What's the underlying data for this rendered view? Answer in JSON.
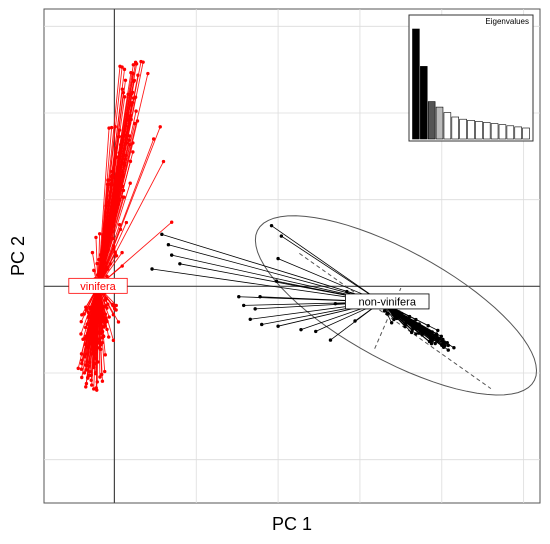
{
  "chart_data": {
    "type": "scatter",
    "subtype": "PCA group scatter (DAPC-style) with star lines to group centroids",
    "xlabel": "PC 1",
    "ylabel": "PC 2",
    "xlim": [
      -4.3,
      26
    ],
    "ylim": [
      -12.5,
      16
    ],
    "grid": true,
    "axes_lines_at_zero": true,
    "groups": [
      {
        "name": "vinifera",
        "color": "#ff0000",
        "centroid": [
          -1.0,
          0.0
        ],
        "point_count_estimate": 300,
        "x_range": [
          -2.5,
          3.0
        ],
        "y_range": [
          -6.0,
          13.0
        ],
        "outliers": [
          [
            2.8,
            9.2
          ],
          [
            3.0,
            7.2
          ],
          [
            3.5,
            3.7
          ],
          [
            2.4,
            8.5
          ]
        ]
      },
      {
        "name": "non-vinifera",
        "color": "#000000",
        "centroid": [
          16.3,
          -0.9
        ],
        "ellipse": {
          "center": [
            17.2,
            -1.1
          ],
          "semi_major": 9.5,
          "semi_minor": 3.2,
          "angle_deg": -27
        },
        "axis_line": {
          "from": [
            11.3,
            1.9
          ],
          "to": [
            23.0,
            -5.9
          ]
        },
        "minor_axis_line": {
          "from": [
            15.9,
            -3.6
          ],
          "to": [
            17.5,
            -0.1
          ]
        },
        "points": [
          [
            2.9,
            3.0
          ],
          [
            3.3,
            2.4
          ],
          [
            3.5,
            1.8
          ],
          [
            2.3,
            1.0
          ],
          [
            4.0,
            1.3
          ],
          [
            9.6,
            3.5
          ],
          [
            10.2,
            2.9
          ],
          [
            10.0,
            1.6
          ],
          [
            9.9,
            0.3
          ],
          [
            8.6,
            -1.3
          ],
          [
            8.3,
            -1.9
          ],
          [
            9.0,
            -2.2
          ],
          [
            10.0,
            -2.3
          ],
          [
            11.4,
            -2.5
          ],
          [
            7.6,
            -0.6
          ],
          [
            7.9,
            -1.1
          ],
          [
            8.9,
            -0.6
          ],
          [
            13.5,
            -1.0
          ],
          [
            14.2,
            -0.3
          ],
          [
            15.0,
            -1.2
          ],
          [
            14.7,
            -2.0
          ],
          [
            13.2,
            -3.1
          ],
          [
            12.3,
            -2.6
          ],
          [
            18.2,
            -2.5
          ],
          [
            18.8,
            -2.8
          ],
          [
            19.3,
            -3.0
          ],
          [
            19.6,
            -3.3
          ],
          [
            20.0,
            -3.4
          ]
        ]
      }
    ],
    "inset": {
      "title": "Eigenvalues",
      "type": "bar",
      "values": [
        1.0,
        0.66,
        0.34,
        0.29,
        0.24,
        0.2,
        0.18,
        0.17,
        0.16,
        0.15,
        0.14,
        0.13,
        0.12,
        0.11,
        0.1
      ],
      "bar_fills": [
        "#000000",
        "#000000",
        "#555555",
        "#bbbbbb",
        "#ffffff",
        "#ffffff",
        "#ffffff",
        "#ffffff",
        "#ffffff",
        "#ffffff",
        "#ffffff",
        "#ffffff",
        "#ffffff",
        "#ffffff",
        "#ffffff"
      ]
    }
  }
}
